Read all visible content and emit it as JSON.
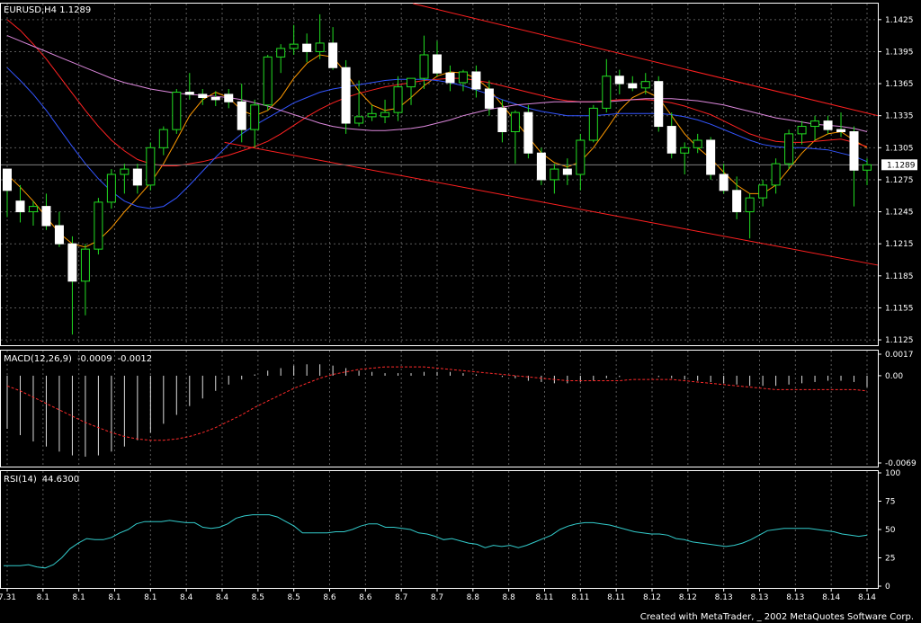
{
  "chart_data": {
    "type": "candlestick",
    "symbol": "EURUSD,H4",
    "title": "EURUSD,H4  1.1289",
    "current_price": "1.1289",
    "grid": true,
    "price_axis": {
      "ticks": [
        "1.1425",
        "1.1395",
        "1.1365",
        "1.1335",
        "1.1305",
        "1.1275",
        "1.1245",
        "1.1215",
        "1.1185",
        "1.1155",
        "1.1125"
      ],
      "range": [
        1.112,
        1.144
      ]
    },
    "x_ticks": [
      "7.31",
      "8.1",
      "8.1",
      "8.1",
      "8.1",
      "8.4",
      "8.4",
      "8.5",
      "8.5",
      "8.6",
      "8.6",
      "8.7",
      "8.7",
      "8.8",
      "8.8",
      "8.11",
      "8.11",
      "8.11",
      "8.12",
      "8.12",
      "8.13",
      "8.13",
      "8.13",
      "8.14",
      "8.14"
    ],
    "candles": [
      [
        1.1285,
        1.1285,
        1.124,
        1.1265
      ],
      [
        1.1255,
        1.127,
        1.1235,
        1.1245
      ],
      [
        1.1245,
        1.1255,
        1.1232,
        1.125
      ],
      [
        1.125,
        1.1262,
        1.1228,
        1.1232
      ],
      [
        1.1232,
        1.1245,
        1.1212,
        1.1215
      ],
      [
        1.1215,
        1.1222,
        1.113,
        1.118
      ],
      [
        1.118,
        1.1215,
        1.1148,
        1.121
      ],
      [
        1.121,
        1.1258,
        1.1205,
        1.1254
      ],
      [
        1.1254,
        1.1285,
        1.1248,
        1.128
      ],
      [
        1.128,
        1.129,
        1.1262,
        1.1285
      ],
      [
        1.1285,
        1.129,
        1.1262,
        1.127
      ],
      [
        1.127,
        1.131,
        1.1265,
        1.1305
      ],
      [
        1.1305,
        1.1325,
        1.1298,
        1.1322
      ],
      [
        1.1322,
        1.136,
        1.1318,
        1.1357
      ],
      [
        1.1357,
        1.1375,
        1.135,
        1.1355
      ],
      [
        1.1355,
        1.136,
        1.1345,
        1.1352
      ],
      [
        1.1352,
        1.1358,
        1.1344,
        1.135
      ],
      [
        1.1355,
        1.136,
        1.1342,
        1.1348
      ],
      [
        1.1348,
        1.1365,
        1.131,
        1.1322
      ],
      [
        1.1322,
        1.135,
        1.1305,
        1.1345
      ],
      [
        1.1345,
        1.1392,
        1.134,
        1.139
      ],
      [
        1.139,
        1.1402,
        1.1375,
        1.1398
      ],
      [
        1.1398,
        1.142,
        1.1392,
        1.1402
      ],
      [
        1.1402,
        1.1412,
        1.1385,
        1.1395
      ],
      [
        1.1395,
        1.143,
        1.1388,
        1.1403
      ],
      [
        1.1403,
        1.1418,
        1.1378,
        1.138
      ],
      [
        1.138,
        1.1387,
        1.1318,
        1.1328
      ],
      [
        1.1328,
        1.1368,
        1.1325,
        1.1334
      ],
      [
        1.1334,
        1.1345,
        1.133,
        1.1337
      ],
      [
        1.1334,
        1.135,
        1.1328,
        1.1338
      ],
      [
        1.1338,
        1.1372,
        1.133,
        1.1362
      ],
      [
        1.1362,
        1.137,
        1.1345,
        1.137
      ],
      [
        1.137,
        1.141,
        1.136,
        1.1392
      ],
      [
        1.1392,
        1.1405,
        1.1372,
        1.1375
      ],
      [
        1.1375,
        1.1382,
        1.1358,
        1.1366
      ],
      [
        1.1366,
        1.1378,
        1.1358,
        1.1376
      ],
      [
        1.1376,
        1.1382,
        1.1352,
        1.136
      ],
      [
        1.136,
        1.1368,
        1.1335,
        1.1342
      ],
      [
        1.1342,
        1.135,
        1.131,
        1.132
      ],
      [
        1.132,
        1.134,
        1.129,
        1.1338
      ],
      [
        1.1338,
        1.1345,
        1.1295,
        1.13
      ],
      [
        1.13,
        1.1305,
        1.127,
        1.1275
      ],
      [
        1.1275,
        1.129,
        1.1262,
        1.1285
      ],
      [
        1.1285,
        1.1295,
        1.127,
        1.128
      ],
      [
        1.128,
        1.1318,
        1.1265,
        1.1312
      ],
      [
        1.1312,
        1.1345,
        1.131,
        1.1342
      ],
      [
        1.1342,
        1.1388,
        1.1338,
        1.1372
      ],
      [
        1.1372,
        1.1378,
        1.1355,
        1.1365
      ],
      [
        1.1365,
        1.1372,
        1.1358,
        1.1361
      ],
      [
        1.1361,
        1.1375,
        1.1355,
        1.1367
      ],
      [
        1.1367,
        1.1372,
        1.132,
        1.1325
      ],
      [
        1.1325,
        1.1338,
        1.1295,
        1.13
      ],
      [
        1.13,
        1.131,
        1.128,
        1.1305
      ],
      [
        1.1305,
        1.1318,
        1.13,
        1.1312
      ],
      [
        1.1312,
        1.1315,
        1.1275,
        1.128
      ],
      [
        1.128,
        1.129,
        1.1262,
        1.1265
      ],
      [
        1.1265,
        1.1278,
        1.1238,
        1.1245
      ],
      [
        1.1245,
        1.1262,
        1.122,
        1.1258
      ],
      [
        1.1258,
        1.1275,
        1.125,
        1.127
      ],
      [
        1.127,
        1.1295,
        1.1262,
        1.129
      ],
      [
        1.129,
        1.1322,
        1.1285,
        1.1318
      ],
      [
        1.1318,
        1.133,
        1.1308,
        1.1325
      ],
      [
        1.1325,
        1.1335,
        1.1312,
        1.133
      ],
      [
        1.133,
        1.1335,
        1.1318,
        1.1322
      ],
      [
        1.1322,
        1.1338,
        1.1315,
        1.132
      ],
      [
        1.132,
        1.1325,
        1.125,
        1.1284
      ],
      [
        1.1284,
        1.1295,
        1.127,
        1.1289
      ]
    ],
    "moving_averages": [
      {
        "color": "#ff9900",
        "values": [
          1.128,
          1.1268,
          1.1255,
          1.124,
          1.1225,
          1.1215,
          1.1212,
          1.1218,
          1.123,
          1.1245,
          1.1258,
          1.1272,
          1.129,
          1.1312,
          1.1335,
          1.135,
          1.1357,
          1.1352,
          1.134,
          1.1335,
          1.134,
          1.1352,
          1.137,
          1.1384,
          1.1392,
          1.139,
          1.1375,
          1.1358,
          1.1345,
          1.134,
          1.1342,
          1.1352,
          1.1363,
          1.1372,
          1.1376,
          1.1375,
          1.137,
          1.136,
          1.1345,
          1.133,
          1.1315,
          1.13,
          1.1291,
          1.1287,
          1.1292,
          1.1305,
          1.1322,
          1.134,
          1.1352,
          1.1358,
          1.1352,
          1.1335,
          1.1318,
          1.1305,
          1.1295,
          1.1282,
          1.127,
          1.1262,
          1.1262,
          1.127,
          1.1285,
          1.13,
          1.1312,
          1.1318,
          1.132,
          1.1312,
          1.1305
        ]
      },
      {
        "color": "#ff2222",
        "values": [
          1.1425,
          1.1415,
          1.1402,
          1.1388,
          1.1372,
          1.1356,
          1.134,
          1.1325,
          1.1312,
          1.1302,
          1.1294,
          1.129,
          1.1288,
          1.1288,
          1.129,
          1.1292,
          1.1295,
          1.1298,
          1.1302,
          1.1306,
          1.1311,
          1.1318,
          1.1326,
          1.1334,
          1.1341,
          1.1347,
          1.1352,
          1.1356,
          1.1359,
          1.1362,
          1.1364,
          1.1366,
          1.1368,
          1.1369,
          1.137,
          1.137,
          1.1368,
          1.1366,
          1.1363,
          1.136,
          1.1357,
          1.1354,
          1.1351,
          1.1349,
          1.1348,
          1.1348,
          1.1349,
          1.135,
          1.135,
          1.135,
          1.1349,
          1.1347,
          1.1344,
          1.134,
          1.1336,
          1.133,
          1.1324,
          1.1318,
          1.1314,
          1.1311,
          1.131,
          1.131,
          1.1311,
          1.1312,
          1.1313,
          1.131,
          1.1306
        ]
      },
      {
        "color": "#3355ff",
        "values": [
          1.138,
          1.1368,
          1.1355,
          1.134,
          1.1323,
          1.1306,
          1.129,
          1.1276,
          1.1264,
          1.1255,
          1.125,
          1.1248,
          1.125,
          1.1258,
          1.127,
          1.1283,
          1.1296,
          1.1308,
          1.1318,
          1.1326,
          1.1333,
          1.134,
          1.1347,
          1.1352,
          1.1357,
          1.136,
          1.1362,
          1.1364,
          1.1366,
          1.1368,
          1.1369,
          1.1369,
          1.1369,
          1.1368,
          1.1366,
          1.1363,
          1.1359,
          1.1355,
          1.135,
          1.1346,
          1.1342,
          1.1339,
          1.1337,
          1.1335,
          1.1335,
          1.1335,
          1.1336,
          1.1337,
          1.1337,
          1.1337,
          1.1337,
          1.1336,
          1.1334,
          1.1331,
          1.1327,
          1.1322,
          1.1317,
          1.1312,
          1.1308,
          1.1306,
          1.1305,
          1.1305,
          1.1304,
          1.1303,
          1.13,
          1.1297,
          1.1292
        ]
      },
      {
        "color": "#dd88dd",
        "values": [
          1.141,
          1.1405,
          1.14,
          1.1395,
          1.139,
          1.1385,
          1.138,
          1.1375,
          1.137,
          1.1366,
          1.1363,
          1.136,
          1.1358,
          1.1356,
          1.1355,
          1.1354,
          1.1353,
          1.1352,
          1.135,
          1.1347,
          1.1344,
          1.134,
          1.1336,
          1.1332,
          1.1328,
          1.1325,
          1.1323,
          1.1322,
          1.1321,
          1.1321,
          1.1322,
          1.1323,
          1.1325,
          1.1328,
          1.1331,
          1.1335,
          1.1338,
          1.1341,
          1.1343,
          1.1345,
          1.1346,
          1.1347,
          1.1348,
          1.1348,
          1.1348,
          1.1348,
          1.1348,
          1.1349,
          1.135,
          1.1351,
          1.1351,
          1.1351,
          1.135,
          1.1349,
          1.1347,
          1.1345,
          1.1342,
          1.1339,
          1.1336,
          1.1333,
          1.1331,
          1.1329,
          1.1327,
          1.1326,
          1.1325,
          1.1323,
          1.132
        ]
      }
    ],
    "trend_lines": [
      {
        "x": [
          0.47,
          1.0
        ],
        "y": [
          1.144,
          1.1335
        ]
      },
      {
        "x": [
          0.255,
          1.0
        ],
        "y": [
          1.131,
          1.1195
        ]
      }
    ],
    "macd": {
      "label": "MACD(12,26,9)",
      "main_value": "-0.0009",
      "signal_value": "-0.0012",
      "ticks": [
        "0.0017",
        "0.00",
        "-0.0069"
      ],
      "histogram": [
        -0.0042,
        -0.0047,
        -0.0052,
        -0.0056,
        -0.006,
        -0.0063,
        -0.0064,
        -0.0063,
        -0.006,
        -0.0056,
        -0.0051,
        -0.0045,
        -0.0038,
        -0.0031,
        -0.0024,
        -0.0018,
        -0.0012,
        -0.0007,
        -0.0003,
        0.0001,
        0.0004,
        0.0006,
        0.0008,
        0.0009,
        0.0009,
        0.0008,
        0.0006,
        0.0004,
        0.0003,
        0.0002,
        0.0002,
        0.0002,
        0.0003,
        0.0003,
        0.0003,
        0.0002,
        0.0001,
        0.0,
        -0.0001,
        -0.0002,
        -0.0004,
        -0.0005,
        -0.0006,
        -0.0006,
        -0.0005,
        -0.0004,
        -0.0002,
        -0.0001,
        0.0,
        0.0,
        -0.0001,
        -0.0002,
        -0.0003,
        -0.0004,
        -0.0005,
        -0.0006,
        -0.0007,
        -0.0008,
        -0.0008,
        -0.0008,
        -0.0007,
        -0.0006,
        -0.0005,
        -0.0004,
        -0.0004,
        -0.0005,
        -0.0009
      ],
      "signal": [
        -0.0008,
        -0.0012,
        -0.0017,
        -0.0022,
        -0.0027,
        -0.0032,
        -0.0037,
        -0.0041,
        -0.0045,
        -0.0048,
        -0.005,
        -0.0051,
        -0.0051,
        -0.005,
        -0.0048,
        -0.0045,
        -0.0041,
        -0.0036,
        -0.0031,
        -0.0025,
        -0.002,
        -0.0015,
        -0.001,
        -0.0006,
        -0.0002,
        0.0001,
        0.0003,
        0.0005,
        0.0006,
        0.0007,
        0.0007,
        0.0007,
        0.0007,
        0.0006,
        0.0005,
        0.0004,
        0.0003,
        0.0002,
        0.0001,
        0.0,
        -0.0001,
        -0.0002,
        -0.0003,
        -0.0004,
        -0.0004,
        -0.0004,
        -0.0004,
        -0.0004,
        -0.0003,
        -0.0003,
        -0.0003,
        -0.0003,
        -0.0004,
        -0.0005,
        -0.0006,
        -0.0007,
        -0.0008,
        -0.0009,
        -0.001,
        -0.0011,
        -0.0011,
        -0.0011,
        -0.0011,
        -0.0011,
        -0.0011,
        -0.0011,
        -0.0012
      ]
    },
    "rsi": {
      "label": "RSI(14)",
      "value": "44.6300",
      "ticks": [
        "100",
        "75",
        "50",
        "25",
        "0"
      ],
      "values": [
        18,
        18,
        18,
        19,
        17,
        16,
        19,
        25,
        33,
        38,
        42,
        41,
        41,
        43,
        47,
        50,
        55,
        57,
        57,
        57,
        58,
        57,
        56,
        56,
        52,
        51,
        52,
        55,
        60,
        62,
        63,
        63,
        63,
        61,
        57,
        53,
        47,
        47,
        47,
        47,
        48,
        48,
        50,
        53,
        55,
        55,
        52,
        52,
        51,
        50,
        47,
        46,
        44,
        41,
        42,
        40,
        38,
        37,
        34,
        36,
        35,
        36,
        34,
        36,
        39,
        42,
        45,
        50,
        53,
        55,
        56,
        56,
        55,
        54,
        52,
        50,
        48,
        47,
        46,
        46,
        45,
        42,
        41,
        39,
        38,
        37,
        36,
        35,
        36,
        38,
        41,
        45,
        49,
        50,
        51,
        51,
        51,
        51,
        50,
        49,
        48,
        46,
        45,
        44,
        45
      ]
    },
    "footer": "Created with MetaTrader, _ 2002 MetaQuotes Software Corp."
  }
}
